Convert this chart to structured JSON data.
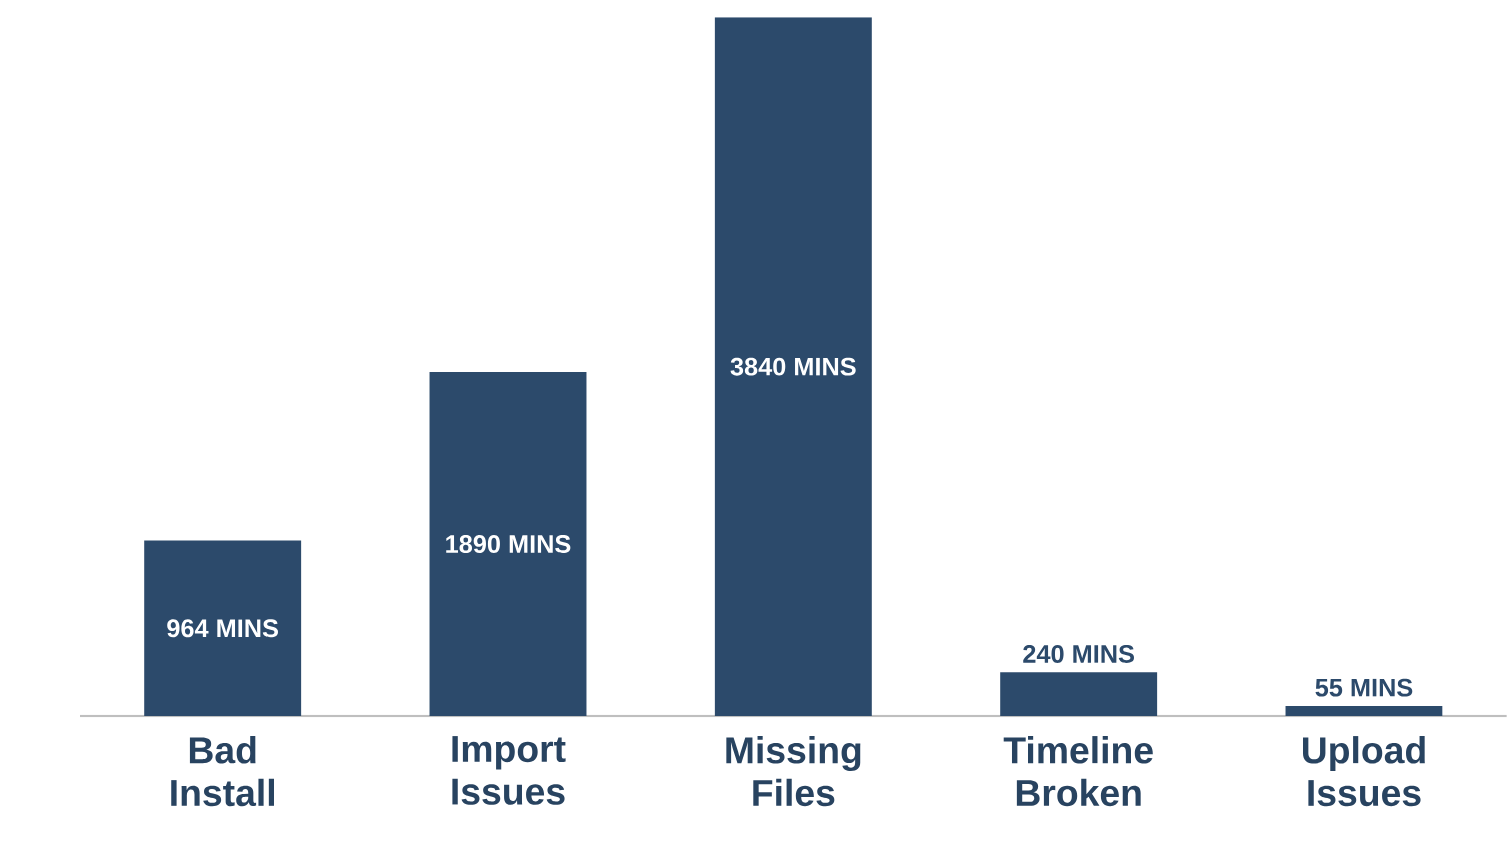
{
  "chart_data": {
    "type": "bar",
    "categories": [
      "Bad Install",
      "Import Issues",
      "Missing Files",
      "Timeline Broken",
      "Upload Issues"
    ],
    "values": [
      964,
      1890,
      3840,
      240,
      55
    ],
    "value_labels": [
      "964 MINS",
      "1890 MINS",
      "3840 MINS",
      "240 MINS",
      "55 MINS"
    ],
    "color": "#2c4a6b",
    "grid": false
  }
}
